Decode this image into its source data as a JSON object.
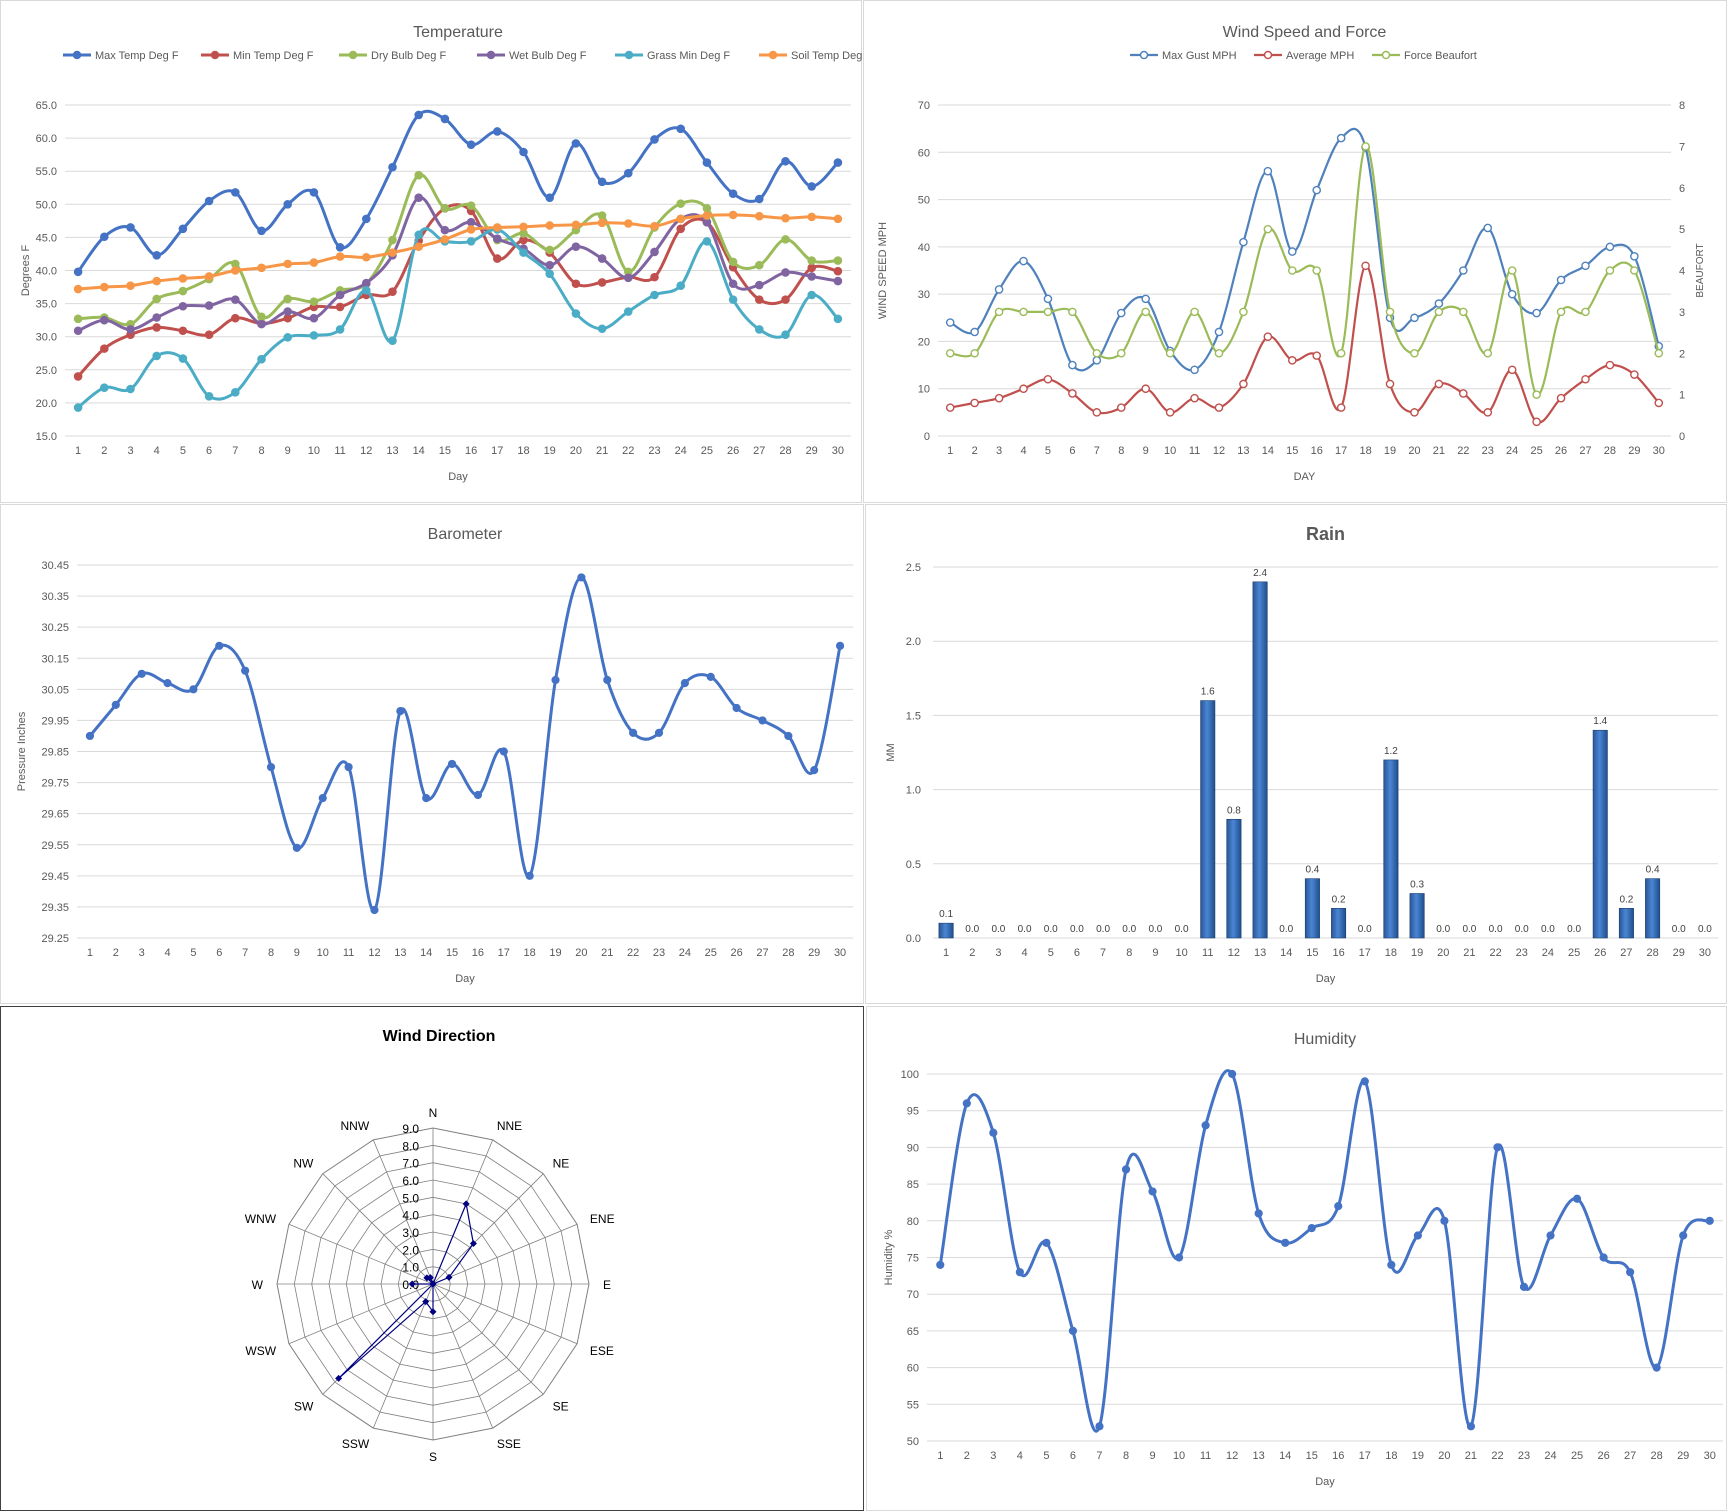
{
  "chart_data": [
    {
      "id": "temperature",
      "type": "line",
      "title": "Temperature",
      "xlabel": "Day",
      "ylabel": "Degrees F",
      "ylim": [
        15,
        65
      ],
      "ytick_step": 5,
      "ytick_decimals": 1,
      "legend": "top",
      "grid": true,
      "x": [
        1,
        2,
        3,
        4,
        5,
        6,
        7,
        8,
        9,
        10,
        11,
        12,
        13,
        14,
        15,
        16,
        17,
        18,
        19,
        20,
        21,
        22,
        23,
        24,
        25,
        26,
        27,
        28,
        29,
        30
      ],
      "series": [
        {
          "name": "Max Temp Deg F",
          "color": "#4472c4",
          "values": [
            39.8,
            45.1,
            46.5,
            42.3,
            46.3,
            50.5,
            51.8,
            46.0,
            50.0,
            51.8,
            43.5,
            47.8,
            55.6,
            63.5,
            62.9,
            59.0,
            61.0,
            57.9,
            51.0,
            59.2,
            53.4,
            54.7,
            59.8,
            61.4,
            56.3,
            51.6,
            50.8,
            56.5,
            52.7,
            56.3
          ]
        },
        {
          "name": "Min Temp Deg F",
          "color": "#c0504d",
          "values": [
            24.0,
            28.2,
            30.3,
            31.4,
            30.9,
            30.3,
            32.8,
            32.0,
            32.8,
            34.5,
            34.5,
            36.3,
            36.8,
            44.5,
            49.4,
            49.0,
            41.8,
            44.6,
            42.7,
            38.0,
            38.2,
            39.0,
            39.0,
            46.3,
            47.3,
            40.5,
            35.6,
            35.6,
            40.4,
            39.9
          ]
        },
        {
          "name": "Dry Bulb Deg F",
          "color": "#9bbb59",
          "values": [
            32.7,
            32.9,
            31.9,
            35.7,
            36.9,
            38.7,
            41.0,
            33.0,
            35.7,
            35.3,
            37.0,
            38.0,
            44.6,
            54.4,
            49.4,
            49.8,
            44.6,
            45.6,
            43.1,
            46.1,
            48.3,
            39.8,
            46.5,
            50.1,
            49.4,
            41.3,
            40.8,
            44.7,
            41.5,
            41.5
          ]
        },
        {
          "name": "Wet Bulb Deg F",
          "color": "#8064a2",
          "values": [
            30.9,
            32.5,
            31.1,
            32.9,
            34.6,
            34.7,
            35.6,
            31.9,
            33.8,
            32.8,
            36.3,
            38.1,
            42.3,
            51.0,
            46.1,
            47.3,
            44.8,
            43.3,
            40.8,
            43.6,
            41.8,
            38.9,
            42.8,
            47.8,
            47.3,
            38.0,
            37.8,
            39.7,
            39.1,
            38.4
          ]
        },
        {
          "name": "Grass Min Deg F",
          "color": "#4bacc6",
          "values": [
            19.3,
            22.3,
            22.1,
            27.1,
            26.7,
            21.0,
            21.6,
            26.6,
            29.9,
            30.2,
            31.1,
            37.0,
            29.4,
            45.4,
            44.4,
            44.4,
            46.2,
            42.7,
            39.5,
            33.5,
            31.2,
            33.8,
            36.3,
            37.7,
            44.4,
            35.6,
            31.1,
            30.3,
            36.3,
            32.7
          ]
        },
        {
          "name": "Soil Temp Deg F",
          "color": "#f79646",
          "values": [
            37.2,
            37.5,
            37.7,
            38.4,
            38.8,
            39.1,
            40.0,
            40.4,
            41.0,
            41.2,
            42.1,
            42.0,
            42.7,
            43.6,
            44.7,
            46.2,
            46.5,
            46.6,
            46.8,
            46.9,
            47.2,
            47.1,
            46.7,
            47.8,
            48.3,
            48.4,
            48.2,
            47.9,
            48.1,
            47.8
          ]
        }
      ]
    },
    {
      "id": "wind",
      "type": "line",
      "title": "Wind Speed and Force",
      "xlabel": "DAY",
      "ylabel": "WIND SPEED MPH",
      "y2label": "BEAUFORT",
      "ylim": [
        0,
        70
      ],
      "ytick_step": 10,
      "y2lim": [
        0,
        8
      ],
      "y2tick_step": 1,
      "legend": "top",
      "grid": true,
      "x": [
        1,
        2,
        3,
        4,
        5,
        6,
        7,
        8,
        9,
        10,
        11,
        12,
        13,
        14,
        15,
        16,
        17,
        18,
        19,
        20,
        21,
        22,
        23,
        24,
        25,
        26,
        27,
        28,
        29,
        30
      ],
      "series": [
        {
          "name": "Max Gust MPH",
          "color": "#4f81bd",
          "axis": "left",
          "values": [
            24,
            22,
            31,
            37,
            29,
            15,
            16,
            26,
            29,
            18,
            14,
            22,
            41,
            56,
            39,
            52,
            63,
            61,
            25,
            25,
            28,
            35,
            44,
            30,
            26,
            33,
            36,
            40,
            38,
            19
          ]
        },
        {
          "name": "Average MPH",
          "color": "#c0504d",
          "axis": "left",
          "values": [
            6,
            7,
            8,
            10,
            12,
            9,
            5,
            6,
            10,
            5,
            8,
            6,
            11,
            21,
            16,
            17,
            6,
            36,
            11,
            5,
            11,
            9,
            5,
            14,
            3,
            8,
            12,
            15,
            13,
            7
          ]
        },
        {
          "name": "Force Beaufort",
          "color": "#9bbb59",
          "axis": "right",
          "values": [
            2,
            2,
            3,
            3,
            3,
            3,
            2,
            2,
            3,
            2,
            3,
            2,
            3,
            5,
            4,
            4,
            2,
            7,
            3,
            2,
            3,
            3,
            2,
            4,
            1,
            3,
            3,
            4,
            4,
            2
          ]
        }
      ]
    },
    {
      "id": "barometer",
      "type": "line",
      "title": "Barometer",
      "xlabel": "Day",
      "ylabel": "Pressure Inches",
      "ylim": [
        29.25,
        30.45
      ],
      "ytick_step": 0.1,
      "ytick_decimals": 2,
      "grid": true,
      "x": [
        1,
        2,
        3,
        4,
        5,
        6,
        7,
        8,
        9,
        10,
        11,
        12,
        13,
        14,
        15,
        16,
        17,
        18,
        19,
        20,
        21,
        22,
        23,
        24,
        25,
        26,
        27,
        28,
        29,
        30
      ],
      "series": [
        {
          "name": "",
          "color": "#4472c4",
          "values": [
            29.9,
            30.0,
            30.1,
            30.07,
            30.05,
            30.19,
            30.11,
            29.8,
            29.54,
            29.7,
            29.8,
            29.34,
            29.98,
            29.7,
            29.81,
            29.71,
            29.85,
            29.45,
            30.08,
            30.41,
            30.08,
            29.91,
            29.91,
            30.07,
            30.09,
            29.99,
            29.95,
            29.9,
            29.79,
            30.19
          ]
        }
      ]
    },
    {
      "id": "rain",
      "type": "bar",
      "title": "Rain",
      "xlabel": "Day",
      "ylabel": "MM",
      "ylim": [
        0,
        2.5
      ],
      "ytick_step": 0.5,
      "ytick_decimals": 1,
      "grid": true,
      "x": [
        1,
        2,
        3,
        4,
        5,
        6,
        7,
        8,
        9,
        10,
        11,
        12,
        13,
        14,
        15,
        16,
        17,
        18,
        19,
        20,
        21,
        22,
        23,
        24,
        25,
        26,
        27,
        28,
        29,
        30
      ],
      "values": [
        0.1,
        0.0,
        0.0,
        0.0,
        0.0,
        0.0,
        0.0,
        0.0,
        0.0,
        0.0,
        1.6,
        0.8,
        2.4,
        0.0,
        0.4,
        0.2,
        0.0,
        1.2,
        0.3,
        0.0,
        0.0,
        0.0,
        0.0,
        0.0,
        0.0,
        1.4,
        0.2,
        0.4,
        0.0,
        0.0
      ],
      "data_labels": [
        "0.1",
        "0.0",
        "0.0",
        "0.0",
        "0.0",
        "0.0",
        "0.0",
        "0.0",
        "0.0",
        "0.0",
        "1.6",
        "0.8",
        "2.4",
        "0.0",
        "0.4",
        "0.2",
        "0.0",
        "1.2",
        "0.3",
        "0.0",
        "0.0",
        "0.0",
        "0.0",
        "0.0",
        "0.0",
        "1.4",
        "0.2",
        "0.4",
        "0.0",
        "0.0"
      ]
    },
    {
      "id": "winddir",
      "type": "radar",
      "title": "Wind Direction",
      "rlim": [
        0,
        9
      ],
      "rtick_step": 1,
      "color": "#000080",
      "categories": [
        "N",
        "NNE",
        "NE",
        "ENE",
        "E",
        "ESE",
        "SE",
        "SSE",
        "S",
        "SSW",
        "SW",
        "WSW",
        "W",
        "WNW",
        "NW",
        "NNW"
      ],
      "values": [
        0,
        5.0,
        3.3,
        1.0,
        0,
        0,
        0,
        0,
        1.6,
        1.1,
        7.7,
        0,
        1.2,
        0,
        0.5,
        0.4
      ]
    },
    {
      "id": "humidity",
      "type": "line",
      "title": "Humidity",
      "xlabel": "Day",
      "ylabel": "Humidity %",
      "ylim": [
        50,
        100
      ],
      "ytick_step": 5,
      "ytick_decimals": 0,
      "grid": true,
      "x": [
        1,
        2,
        3,
        4,
        5,
        6,
        7,
        8,
        9,
        10,
        11,
        12,
        13,
        14,
        15,
        16,
        17,
        18,
        19,
        20,
        21,
        22,
        23,
        24,
        25,
        26,
        27,
        28,
        29,
        30
      ],
      "series": [
        {
          "name": "",
          "color": "#4472c4",
          "values": [
            74,
            96,
            92,
            73,
            77,
            65,
            52,
            87,
            84,
            75,
            93,
            100,
            81,
            77,
            79,
            82,
            99,
            74,
            78,
            80,
            52,
            90,
            71,
            78,
            83,
            75,
            73,
            60,
            78,
            80
          ]
        }
      ]
    }
  ]
}
